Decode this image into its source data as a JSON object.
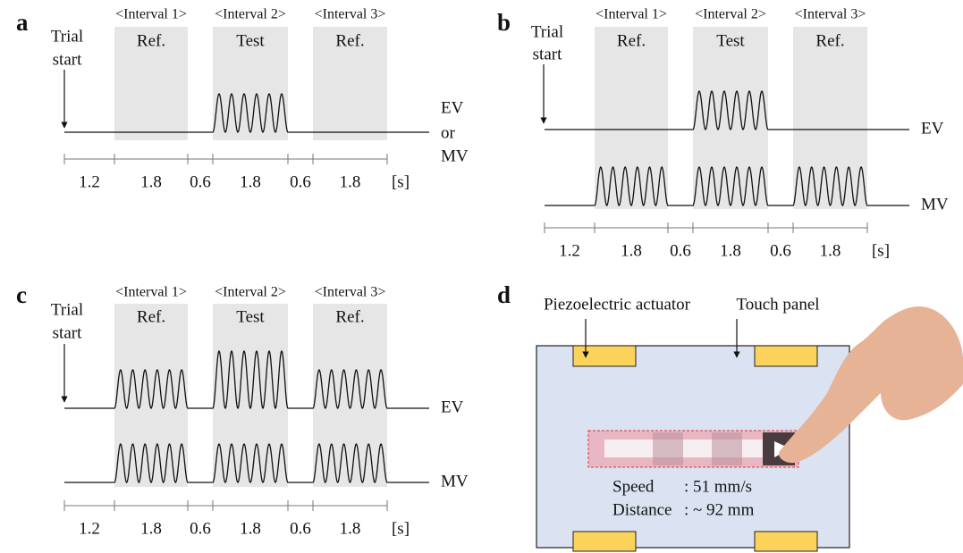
{
  "panels": [
    {
      "label": "a",
      "trial_start": [
        "Trial",
        "start"
      ],
      "intervals": [
        {
          "name": "<Interval 1>",
          "stimulus": "Ref."
        },
        {
          "name": "<Interval 2>",
          "stimulus": "Test"
        },
        {
          "name": "<Interval 3>",
          "stimulus": "Ref."
        }
      ],
      "signal_labels": [
        "EV",
        "or",
        "MV"
      ],
      "durations": [
        "1.2",
        "1.8",
        "0.6",
        "1.8",
        "0.6",
        "1.8"
      ],
      "unit": "[s]"
    },
    {
      "label": "b",
      "trial_start": [
        "Trial",
        "start"
      ],
      "intervals": [
        {
          "name": "<Interval 1>",
          "stimulus": "Ref."
        },
        {
          "name": "<Interval 2>",
          "stimulus": "Test"
        },
        {
          "name": "<Interval 3>",
          "stimulus": "Ref."
        }
      ],
      "signal_labels": [
        "EV",
        "MV"
      ],
      "durations": [
        "1.2",
        "1.8",
        "0.6",
        "1.8",
        "0.6",
        "1.8"
      ],
      "unit": "[s]"
    },
    {
      "label": "c",
      "trial_start": [
        "Trial",
        "start"
      ],
      "intervals": [
        {
          "name": "<Interval 1>",
          "stimulus": "Ref."
        },
        {
          "name": "<Interval 2>",
          "stimulus": "Test"
        },
        {
          "name": "<Interval 3>",
          "stimulus": "Ref."
        }
      ],
      "signal_labels": [
        "EV",
        "MV"
      ],
      "durations": [
        "1.2",
        "1.8",
        "0.6",
        "1.8",
        "0.6",
        "1.8"
      ],
      "unit": "[s]"
    },
    {
      "label": "d",
      "actuator_label": "Piezoelectric actuator",
      "panel_label": "Touch panel",
      "speed": {
        "name": "Speed",
        "value": ": 51 mm/s"
      },
      "distance": {
        "name": "Distance",
        "value": ": ~ 92 mm"
      }
    }
  ]
}
